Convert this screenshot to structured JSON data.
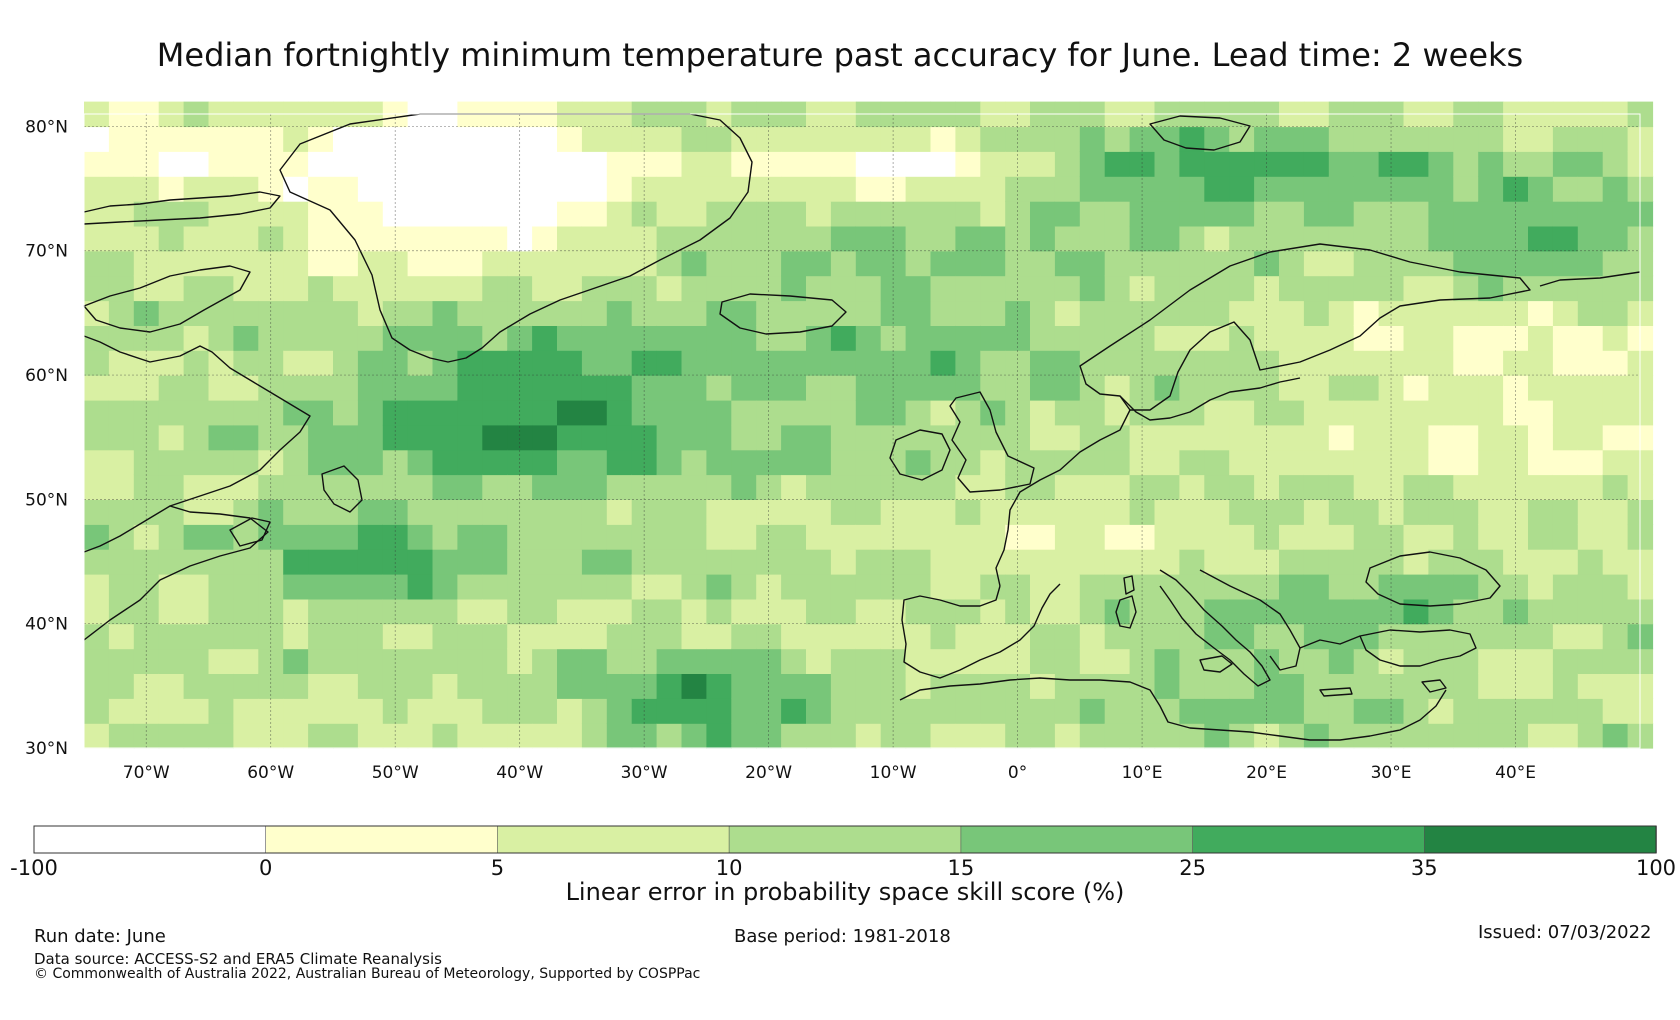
{
  "title": "Median fortnightly minimum temperature past accuracy for June. Lead time: 2 weeks",
  "map": {
    "lat_labels": [
      "80°N",
      "70°N",
      "60°N",
      "50°N",
      "40°N",
      "30°N"
    ],
    "lat_values": [
      80,
      70,
      60,
      50,
      40,
      30
    ],
    "lon_labels": [
      "70°W",
      "60°W",
      "50°W",
      "40°W",
      "30°W",
      "20°W",
      "10°W",
      "0°",
      "10°E",
      "20°E",
      "30°E",
      "40°E"
    ],
    "lon_values": [
      -70,
      -60,
      -50,
      -40,
      -30,
      -20,
      -10,
      0,
      10,
      20,
      30,
      40
    ],
    "extent": {
      "lon_min": -75,
      "lon_max": 50,
      "lat_min": 30,
      "lat_max": 81
    }
  },
  "colorbar": {
    "ticks": [
      "-100",
      "0",
      "5",
      "10",
      "15",
      "25",
      "35",
      "100"
    ],
    "colors": [
      "#ffffff",
      "#ffffcc",
      "#d9f0a3",
      "#addd8e",
      "#78c679",
      "#41ab5d",
      "#238443"
    ],
    "label": "Linear error in probability space skill score (%)"
  },
  "footer": {
    "run_date": "Run date: June",
    "base_period": "Base period: 1981-2018",
    "issued": "Issued: 07/03/2022",
    "data_source": "Data source: ACCESS-S2 and ERA5 Climate Reanalysis",
    "copyright": "© Commonwealth of Australia 2022, Australian Bureau of Meteorology, Supported by COSPPac"
  }
}
